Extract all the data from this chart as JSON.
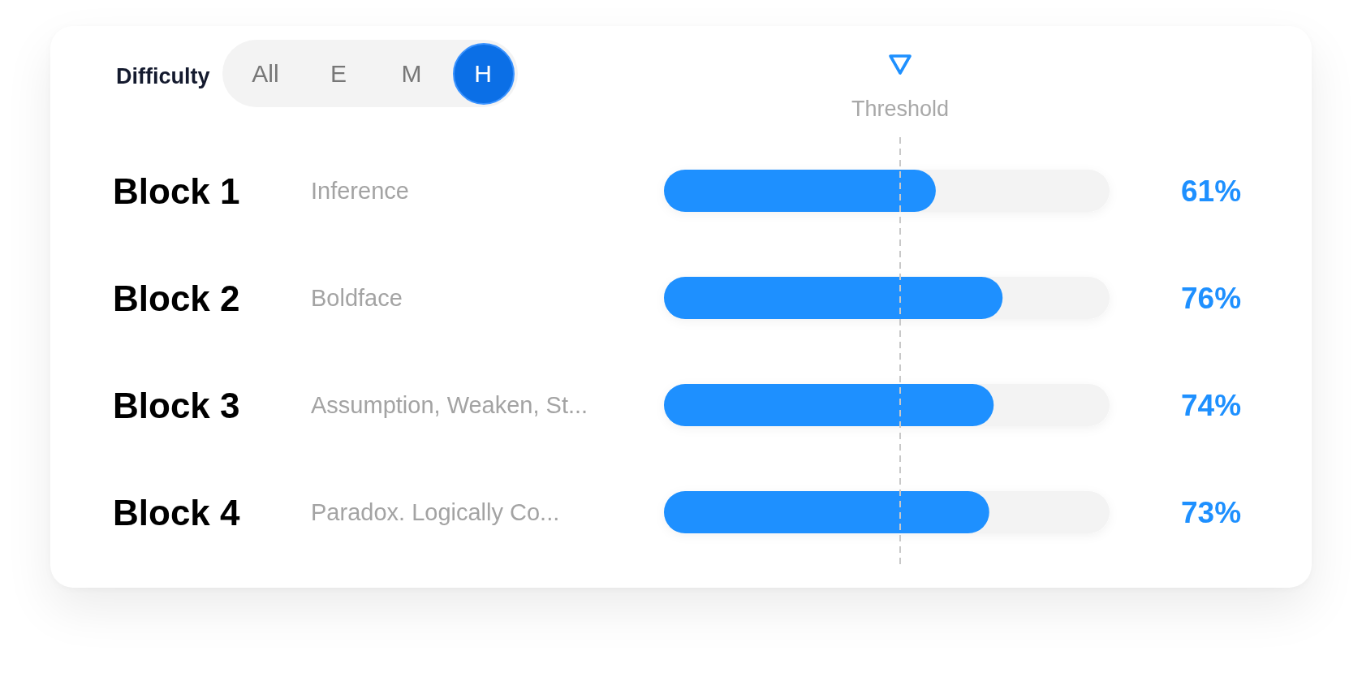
{
  "chart_data": {
    "type": "bar",
    "title": "Difficulty",
    "orientation": "horizontal",
    "categories": [
      "Block 1",
      "Block 2",
      "Block 3",
      "Block 4"
    ],
    "values": [
      61,
      76,
      74,
      73
    ],
    "value_labels": [
      "61%",
      "76%",
      "74%",
      "73%"
    ],
    "color": "#1e90ff",
    "xlim": [
      0,
      100
    ],
    "tick_labels": "y",
    "ref_lines": [
      {
        "axis": "x",
        "value": 53,
        "label": "Threshold",
        "color": "#c8c8c8",
        "line_style": "dashed"
      }
    ],
    "annotations": [
      "Inference",
      "Boldface",
      "Assumption, Weaken, St...",
      "Paradox. Logically Co...",
      "All",
      "E",
      "M",
      "H"
    ]
  }
}
